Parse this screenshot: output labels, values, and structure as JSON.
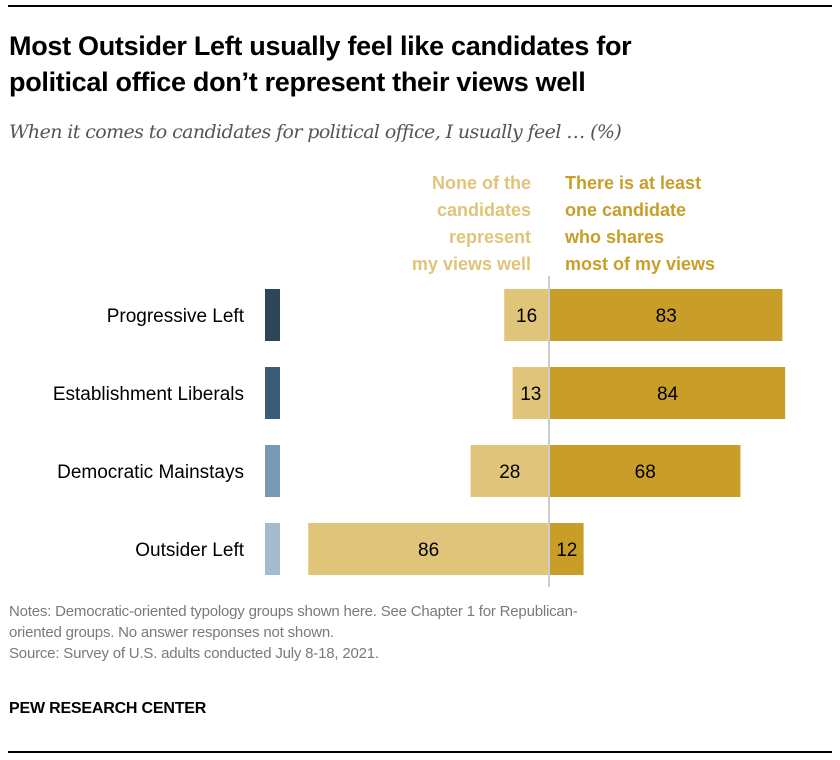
{
  "header": {
    "title_line1": "Most Outsider Left usually feel like candidates for",
    "title_line2": "political office don’t represent their views well",
    "subtitle": "When it comes to candidates for political office, I usually feel … (%)"
  },
  "legend": {
    "left_lines": [
      "None of the",
      "candidates",
      "represent",
      "my views well"
    ],
    "right_lines": [
      "There is at least",
      "one candidate",
      "who shares",
      "most of my views"
    ]
  },
  "chart_data": {
    "type": "bar",
    "orientation": "horizontal-diverging",
    "title": "Most Outsider Left usually feel like candidates for political office don’t represent their views well",
    "subtitle": "When it comes to candidates for political office, I usually feel … (%)",
    "categories": [
      "Progressive Left",
      "Establishment Liberals",
      "Democratic Mainstays",
      "Outsider Left"
    ],
    "category_colors": [
      "#2D4658",
      "#3B5C75",
      "#7799B5",
      "#A4BACD"
    ],
    "series": [
      {
        "name": "None of the candidates represent my views well",
        "values": [
          16,
          13,
          28,
          86
        ],
        "color": "#E0C47A",
        "direction": "left"
      },
      {
        "name": "There is at least one candidate who shares most of my views",
        "values": [
          83,
          84,
          68,
          12
        ],
        "color": "#C99E28",
        "direction": "right"
      }
    ],
    "xlabel": "",
    "ylabel": "",
    "xlim": [
      -100,
      100
    ],
    "grid": false,
    "center_line_color": "#CCCCCC",
    "legend_position": "top"
  },
  "footer": {
    "notes_line1": "Notes: Democratic-oriented typology groups shown here. See Chapter 1 for Republican-",
    "notes_line2": "oriented groups. No answer responses not shown.",
    "source": "Source: Survey of U.S. adults conducted July 8-18, 2021.",
    "brand": "PEW RESEARCH CENTER"
  }
}
